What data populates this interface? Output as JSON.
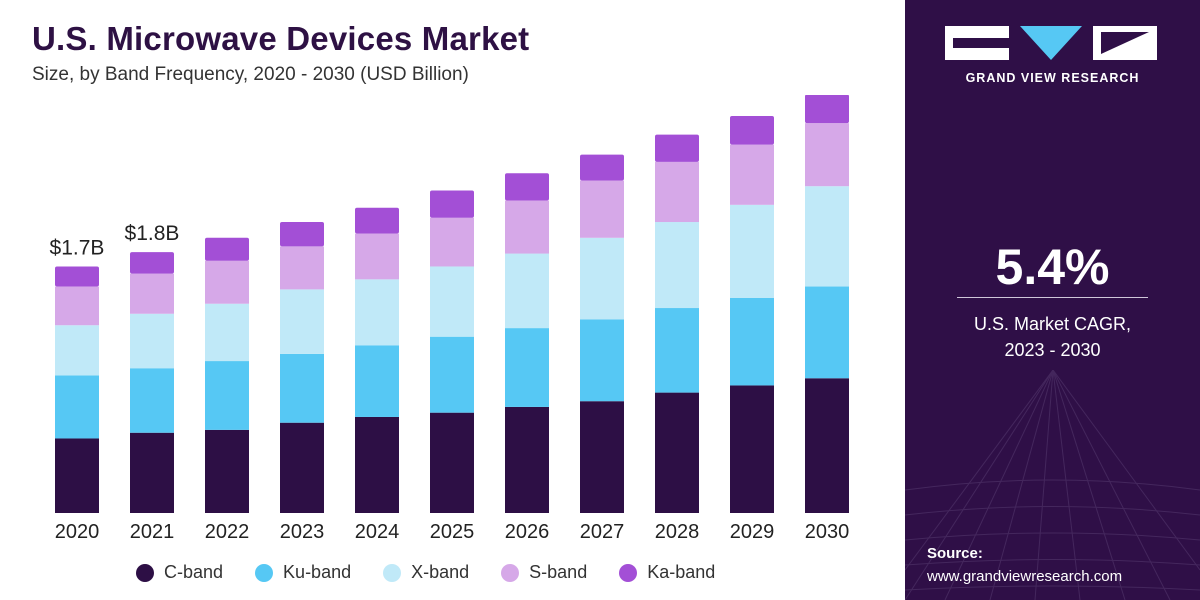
{
  "header": {
    "title": "U.S. Microwave Devices Market",
    "subtitle": "Size, by Band Frequency, 2020 - 2030 (USD Billion)"
  },
  "brand": {
    "name": "GRAND VIEW RESEARCH",
    "panel_color": "#2f0f47",
    "logo_accent": "#56c8f4"
  },
  "highlight": {
    "value": "5.4%",
    "label_line1": "U.S. Market CAGR,",
    "label_line2": "2023 - 2030"
  },
  "source": {
    "label": "Source:",
    "url": "www.grandviewresearch.com"
  },
  "chart_data": {
    "type": "bar",
    "stacked": true,
    "categories": [
      "2020",
      "2021",
      "2022",
      "2023",
      "2024",
      "2025",
      "2026",
      "2027",
      "2028",
      "2029",
      "2030"
    ],
    "series": [
      {
        "name": "C-band",
        "color": "#2d0f45",
        "values": [
          0.52,
          0.56,
          0.58,
          0.63,
          0.67,
          0.7,
          0.74,
          0.78,
          0.84,
          0.89,
          0.94
        ]
      },
      {
        "name": "Ku-band",
        "color": "#56c8f4",
        "values": [
          0.44,
          0.45,
          0.48,
          0.48,
          0.5,
          0.53,
          0.55,
          0.57,
          0.59,
          0.61,
          0.64
        ]
      },
      {
        "name": "X-band",
        "color": "#c0e9f8",
        "values": [
          0.35,
          0.38,
          0.4,
          0.45,
          0.46,
          0.49,
          0.52,
          0.57,
          0.6,
          0.65,
          0.7
        ]
      },
      {
        "name": "S-band",
        "color": "#d6a8e8",
        "values": [
          0.27,
          0.28,
          0.3,
          0.3,
          0.32,
          0.34,
          0.37,
          0.4,
          0.42,
          0.42,
          0.44
        ]
      },
      {
        "name": "Ka-band",
        "color": "#a34fd6",
        "values": [
          0.14,
          0.15,
          0.16,
          0.17,
          0.18,
          0.19,
          0.19,
          0.18,
          0.19,
          0.2,
          0.2
        ]
      }
    ],
    "data_labels": [
      {
        "category": "2020",
        "text": "$1.7B"
      },
      {
        "category": "2021",
        "text": "$1.8B"
      }
    ],
    "ylim": [
      0,
      3.0
    ],
    "grid": false,
    "legend_position": "bottom"
  }
}
